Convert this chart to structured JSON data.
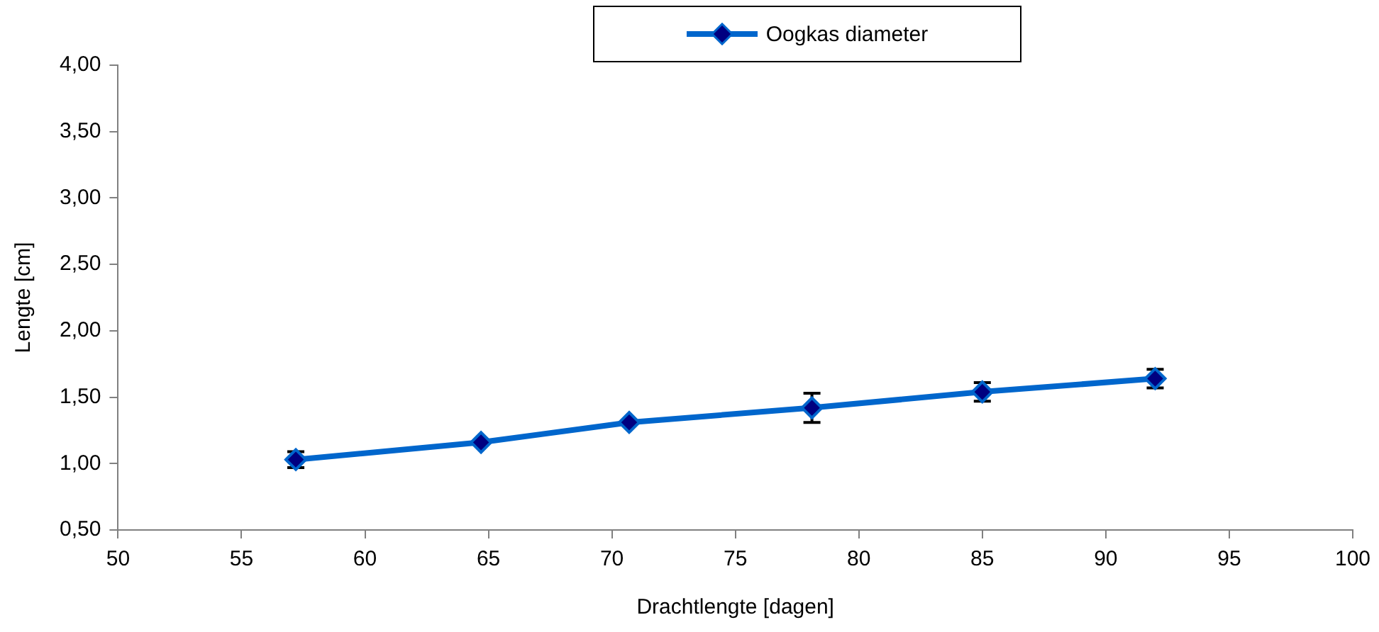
{
  "chart_data": {
    "type": "line",
    "xlabel": "Drachtlengte [dagen]",
    "ylabel": "Lengte [cm]",
    "x": [
      57.2,
      64.7,
      70.7,
      78.1,
      85.0,
      92.0
    ],
    "series": [
      {
        "name": "Oogkas diameter",
        "color": "#0066cc",
        "values": [
          1.03,
          1.16,
          1.31,
          1.42,
          1.54,
          1.64
        ],
        "errors": [
          0.06,
          null,
          null,
          0.11,
          0.07,
          0.07
        ]
      }
    ],
    "xlim": [
      50,
      100
    ],
    "xticks": [
      50,
      55,
      60,
      65,
      70,
      75,
      80,
      85,
      90,
      95,
      100
    ],
    "ylim": [
      0.5,
      4.0
    ],
    "yticks": [
      {
        "value": 0.5,
        "label": "0,50"
      },
      {
        "value": 1.0,
        "label": "1,00"
      },
      {
        "value": 1.5,
        "label": "1,50"
      },
      {
        "value": 2.0,
        "label": "2,00"
      },
      {
        "value": 2.5,
        "label": "2,50"
      },
      {
        "value": 3.0,
        "label": "3,00"
      },
      {
        "value": 3.5,
        "label": "3,50"
      },
      {
        "value": 4.0,
        "label": "4,00"
      }
    ],
    "grid": false,
    "legend": "top",
    "marker": "diamond",
    "line_style": "solid"
  }
}
